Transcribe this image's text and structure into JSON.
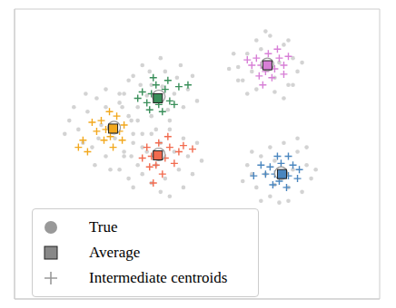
{
  "chart_data": {
    "type": "scatter",
    "xlim": [
      0,
      400
    ],
    "ylim": [
      0,
      325
    ],
    "tick_labels": false,
    "legend": "lower left",
    "series": [
      {
        "marker": "dot",
        "color": "#d3d3d3",
        "points": [
          [
            120,
            230
          ],
          [
            130,
            250
          ],
          [
            140,
            262
          ],
          [
            150,
            240
          ],
          [
            165,
            255
          ],
          [
            178,
            248
          ],
          [
            190,
            235
          ],
          [
            185,
            215
          ],
          [
            170,
            200
          ],
          [
            150,
            205
          ],
          [
            135,
            215
          ],
          [
            125,
            245
          ],
          [
            160,
            270
          ],
          [
            145,
            228
          ],
          [
            175,
            230
          ],
          [
            195,
            250
          ],
          [
            115,
            220
          ],
          [
            168,
            212
          ],
          [
            138,
            240
          ],
          [
            182,
            262
          ],
          [
            155,
            190
          ],
          [
            200,
            222
          ],
          [
            128,
            200
          ],
          [
            162,
            238
          ],
          [
            148,
            255
          ],
          [
            70,
            190
          ],
          [
            80,
            210
          ],
          [
            90,
            225
          ],
          [
            100,
            215
          ],
          [
            115,
            230
          ],
          [
            125,
            205
          ],
          [
            130,
            185
          ],
          [
            120,
            165
          ],
          [
            100,
            160
          ],
          [
            85,
            170
          ],
          [
            75,
            175
          ],
          [
            60,
            200
          ],
          [
            95,
            195
          ],
          [
            110,
            180
          ],
          [
            135,
            200
          ],
          [
            65,
            215
          ],
          [
            88,
            150
          ],
          [
            105,
            145
          ],
          [
            140,
            170
          ],
          [
            78,
            230
          ],
          [
            118,
            215
          ],
          [
            92,
            180
          ],
          [
            55,
            185
          ],
          [
            128,
            160
          ],
          [
            100,
            235
          ],
          [
            120,
            160
          ],
          [
            130,
            175
          ],
          [
            140,
            140
          ],
          [
            150,
            130
          ],
          [
            165,
            135
          ],
          [
            180,
            145
          ],
          [
            190,
            160
          ],
          [
            185,
            180
          ],
          [
            170,
            190
          ],
          [
            150,
            185
          ],
          [
            135,
            150
          ],
          [
            125,
            135
          ],
          [
            160,
            120
          ],
          [
            200,
            175
          ],
          [
            145,
            165
          ],
          [
            175,
            165
          ],
          [
            195,
            140
          ],
          [
            140,
            185
          ],
          [
            170,
            115
          ],
          [
            155,
            150
          ],
          [
            115,
            145
          ],
          [
            205,
            155
          ],
          [
            130,
            125
          ],
          [
            185,
            125
          ],
          [
            160,
            175
          ],
          [
            245,
            260
          ],
          [
            255,
            275
          ],
          [
            265,
            290
          ],
          [
            280,
            295
          ],
          [
            295,
            285
          ],
          [
            305,
            270
          ],
          [
            310,
            255
          ],
          [
            300,
            240
          ],
          [
            285,
            232
          ],
          [
            265,
            235
          ],
          [
            250,
            245
          ],
          [
            240,
            275
          ],
          [
            275,
            260
          ],
          [
            290,
            265
          ],
          [
            260,
            255
          ],
          [
            270,
            280
          ],
          [
            300,
            290
          ],
          [
            315,
            265
          ],
          [
            255,
            230
          ],
          [
            285,
            248
          ],
          [
            245,
            245
          ],
          [
            295,
            225
          ],
          [
            275,
            300
          ],
          [
            235,
            258
          ],
          [
            305,
            240
          ],
          [
            260,
            140
          ],
          [
            270,
            160
          ],
          [
            280,
            170
          ],
          [
            295,
            175
          ],
          [
            310,
            165
          ],
          [
            320,
            150
          ],
          [
            325,
            135
          ],
          [
            315,
            120
          ],
          [
            300,
            110
          ],
          [
            280,
            115
          ],
          [
            265,
            125
          ],
          [
            255,
            150
          ],
          [
            290,
            140
          ],
          [
            305,
            145
          ],
          [
            275,
            140
          ],
          [
            285,
            155
          ],
          [
            300,
            125
          ],
          [
            320,
            170
          ],
          [
            270,
            110
          ],
          [
            290,
            108
          ],
          [
            330,
            145
          ],
          [
            260,
            165
          ],
          [
            310,
            180
          ],
          [
            285,
            128
          ],
          [
            250,
            132
          ]
        ]
      },
      {
        "name": "True",
        "marker": "circle",
        "color": "#999999",
        "points": [
          [
            158,
            227
          ],
          [
            109,
            192
          ],
          [
            158,
            162
          ],
          [
            277,
            263
          ],
          [
            292,
            141
          ]
        ]
      },
      {
        "name": "Average",
        "marker": "square",
        "color": "#888888",
        "colors": [
          "#3a8f5a",
          "#f2a81d",
          "#f26b4f",
          "#d77fd6",
          "#4a86bf"
        ],
        "points": [
          [
            157,
            225
          ],
          [
            108,
            191
          ],
          [
            157,
            161
          ],
          [
            277,
            262
          ],
          [
            293,
            140
          ]
        ]
      },
      {
        "name": "Intermediate centroids",
        "marker": "plus",
        "color": "#999999",
        "colors": [
          "#3a8f5a",
          "#3a8f5a",
          "#3a8f5a",
          "#3a8f5a",
          "#3a8f5a",
          "#3a8f5a",
          "#3a8f5a",
          "#3a8f5a",
          "#3a8f5a",
          "#3a8f5a",
          "#3a8f5a",
          "#3a8f5a",
          "#3a8f5a",
          "#3a8f5a",
          "#3a8f5a",
          "#3a8f5a",
          "#f2a81d",
          "#f2a81d",
          "#f2a81d",
          "#f2a81d",
          "#f2a81d",
          "#f2a81d",
          "#f2a81d",
          "#f2a81d",
          "#f2a81d",
          "#f2a81d",
          "#f2a81d",
          "#f2a81d",
          "#f2a81d",
          "#f2a81d",
          "#f2a81d",
          "#f2a81d",
          "#f26b4f",
          "#f26b4f",
          "#f26b4f",
          "#f26b4f",
          "#f26b4f",
          "#f26b4f",
          "#f26b4f",
          "#f26b4f",
          "#f26b4f",
          "#f26b4f",
          "#f26b4f",
          "#f26b4f",
          "#f26b4f",
          "#f26b4f",
          "#f26b4f",
          "#f26b4f",
          "#d77fd6",
          "#d77fd6",
          "#d77fd6",
          "#d77fd6",
          "#d77fd6",
          "#d77fd6",
          "#d77fd6",
          "#d77fd6",
          "#d77fd6",
          "#d77fd6",
          "#d77fd6",
          "#d77fd6",
          "#d77fd6",
          "#d77fd6",
          "#d77fd6",
          "#d77fd6",
          "#4a86bf",
          "#4a86bf",
          "#4a86bf",
          "#4a86bf",
          "#4a86bf",
          "#4a86bf",
          "#4a86bf",
          "#4a86bf",
          "#4a86bf",
          "#4a86bf",
          "#4a86bf",
          "#4a86bf",
          "#4a86bf",
          "#4a86bf",
          "#4a86bf",
          "#4a86bf"
        ],
        "points": [
          [
            150,
            230
          ],
          [
            160,
            228
          ],
          [
            158,
            218
          ],
          [
            165,
            235
          ],
          [
            145,
            220
          ],
          [
            170,
            222
          ],
          [
            155,
            240
          ],
          [
            148,
            212
          ],
          [
            168,
            245
          ],
          [
            175,
            218
          ],
          [
            140,
            232
          ],
          [
            162,
            210
          ],
          [
            180,
            238
          ],
          [
            152,
            248
          ],
          [
            190,
            240
          ],
          [
            135,
            225
          ],
          [
            100,
            190
          ],
          [
            110,
            195
          ],
          [
            105,
            182
          ],
          [
            115,
            188
          ],
          [
            95,
            200
          ],
          [
            112,
            205
          ],
          [
            98,
            178
          ],
          [
            120,
            195
          ],
          [
            90,
            188
          ],
          [
            108,
            170
          ],
          [
            80,
            165
          ],
          [
            70,
            170
          ],
          [
            85,
            198
          ],
          [
            118,
            178
          ],
          [
            104,
            210
          ],
          [
            75,
            178
          ],
          [
            150,
            160
          ],
          [
            160,
            165
          ],
          [
            155,
            150
          ],
          [
            165,
            158
          ],
          [
            145,
            170
          ],
          [
            170,
            170
          ],
          [
            158,
            175
          ],
          [
            148,
            148
          ],
          [
            175,
            152
          ],
          [
            140,
            158
          ],
          [
            162,
            140
          ],
          [
            180,
            165
          ],
          [
            185,
            172
          ],
          [
            152,
            130
          ],
          [
            195,
            168
          ],
          [
            168,
            182
          ],
          [
            270,
            262
          ],
          [
            280,
            265
          ],
          [
            275,
            255
          ],
          [
            285,
            258
          ],
          [
            265,
            270
          ],
          [
            290,
            270
          ],
          [
            278,
            275
          ],
          [
            268,
            250
          ],
          [
            295,
            262
          ],
          [
            260,
            262
          ],
          [
            282,
            248
          ],
          [
            300,
            272
          ],
          [
            288,
            280
          ],
          [
            255,
            268
          ],
          [
            272,
            240
          ],
          [
            295,
            252
          ],
          [
            285,
            140
          ],
          [
            295,
            142
          ],
          [
            290,
            132
          ],
          [
            300,
            138
          ],
          [
            280,
            148
          ],
          [
            305,
            150
          ],
          [
            292,
            152
          ],
          [
            283,
            128
          ],
          [
            310,
            135
          ],
          [
            275,
            140
          ],
          [
            298,
            125
          ],
          [
            312,
            145
          ],
          [
            288,
            160
          ],
          [
            270,
            150
          ],
          [
            300,
            160
          ],
          [
            262,
            138
          ]
        ]
      }
    ]
  }
}
